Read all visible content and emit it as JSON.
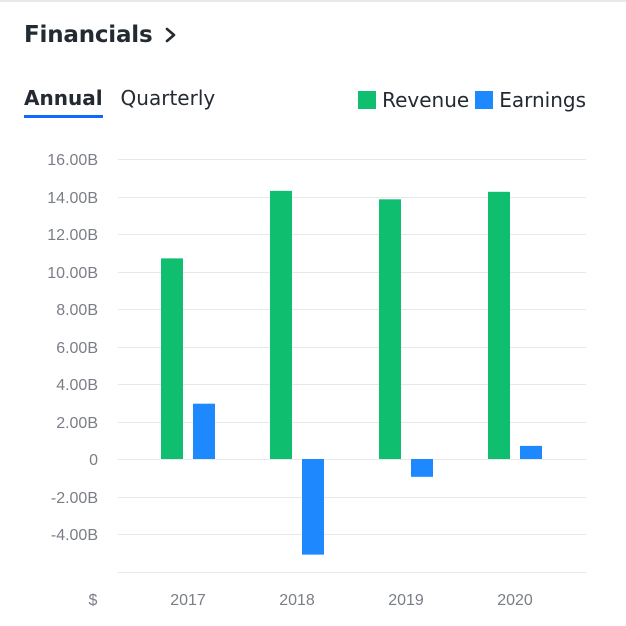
{
  "header": {
    "title": "Financials",
    "chevron_icon": "chevron-right-icon"
  },
  "tabs": [
    {
      "label": "Annual",
      "active": true
    },
    {
      "label": "Quarterly",
      "active": false
    }
  ],
  "legend": [
    {
      "label": "Revenue",
      "color": "#0fbf6f"
    },
    {
      "label": "Earnings",
      "color": "#1e88ff"
    }
  ],
  "chart_data": {
    "type": "bar",
    "categories": [
      "2017",
      "2018",
      "2019",
      "2020"
    ],
    "series": [
      {
        "name": "Revenue",
        "values": [
          10.7,
          14.3,
          13.85,
          14.25
        ],
        "color": "#0fbf6f"
      },
      {
        "name": "Earnings",
        "values": [
          2.95,
          -5.1,
          -0.95,
          0.7
        ],
        "color": "#1e88ff"
      }
    ],
    "ylim": [
      -5,
      16
    ],
    "yticks": [
      16,
      14,
      12,
      10,
      8,
      6,
      4,
      2,
      0,
      -2,
      -4
    ],
    "ytick_labels": [
      "16.00B",
      "14.00B",
      "12.00B",
      "10.00B",
      "8.00B",
      "6.00B",
      "4.00B",
      "2.00B",
      "0",
      "-2.00B",
      "-4.00B"
    ],
    "ylabel": "$",
    "grid": true,
    "legend_position": "top-right"
  }
}
